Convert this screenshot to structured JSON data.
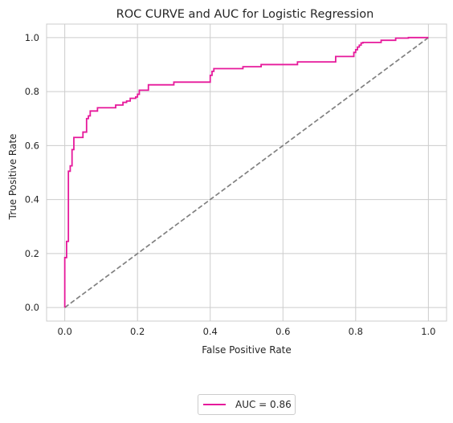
{
  "chart_data": {
    "type": "line",
    "title": "ROC CURVE and AUC for Logistic Regression",
    "xlabel": "False Positive Rate",
    "ylabel": "True Positive Rate",
    "xlim": [
      -0.05,
      1.05
    ],
    "ylim": [
      -0.05,
      1.05
    ],
    "x_ticks": [
      "0.0",
      "0.2",
      "0.4",
      "0.6",
      "0.8",
      "1.0"
    ],
    "y_ticks": [
      "0.0",
      "0.2",
      "0.4",
      "0.6",
      "0.8",
      "1.0"
    ],
    "x_tick_values": [
      0,
      0.2,
      0.4,
      0.6,
      0.8,
      1.0
    ],
    "y_tick_values": [
      0,
      0.2,
      0.4,
      0.6,
      0.8,
      1.0
    ],
    "grid": true,
    "legend_position": "below the plot, centered",
    "series": [
      {
        "name": "AUC = 0.86",
        "color": "#e6199b",
        "style": "solid",
        "x": [
          0.0,
          0.0,
          0.005,
          0.005,
          0.01,
          0.01,
          0.015,
          0.015,
          0.02,
          0.02,
          0.025,
          0.025,
          0.05,
          0.05,
          0.06,
          0.06,
          0.065,
          0.065,
          0.07,
          0.07,
          0.09,
          0.09,
          0.14,
          0.14,
          0.16,
          0.16,
          0.17,
          0.17,
          0.18,
          0.18,
          0.195,
          0.195,
          0.2,
          0.2,
          0.205,
          0.205,
          0.23,
          0.23,
          0.3,
          0.3,
          0.4,
          0.4,
          0.405,
          0.405,
          0.41,
          0.41,
          0.49,
          0.49,
          0.54,
          0.54,
          0.64,
          0.64,
          0.745,
          0.745,
          0.795,
          0.795,
          0.8,
          0.8,
          0.805,
          0.805,
          0.81,
          0.81,
          0.815,
          0.815,
          0.82,
          0.82,
          0.87,
          0.87,
          0.91,
          0.91,
          0.945,
          0.945,
          1.0
        ],
        "y": [
          0.0,
          0.185,
          0.185,
          0.245,
          0.245,
          0.505,
          0.505,
          0.525,
          0.525,
          0.585,
          0.585,
          0.63,
          0.63,
          0.65,
          0.65,
          0.7,
          0.7,
          0.71,
          0.71,
          0.728,
          0.728,
          0.74,
          0.74,
          0.75,
          0.75,
          0.76,
          0.76,
          0.765,
          0.765,
          0.775,
          0.775,
          0.78,
          0.78,
          0.79,
          0.79,
          0.805,
          0.805,
          0.825,
          0.825,
          0.835,
          0.835,
          0.86,
          0.86,
          0.875,
          0.875,
          0.885,
          0.885,
          0.892,
          0.892,
          0.9,
          0.9,
          0.91,
          0.91,
          0.93,
          0.93,
          0.945,
          0.945,
          0.955,
          0.955,
          0.965,
          0.965,
          0.972,
          0.972,
          0.98,
          0.98,
          0.982,
          0.982,
          0.99,
          0.99,
          0.998,
          0.998,
          1.0,
          1.0
        ]
      },
      {
        "color": "#808080",
        "style": "dashed",
        "x": [
          0.0,
          1.0
        ],
        "y": [
          0.0,
          1.0
        ]
      }
    ]
  }
}
